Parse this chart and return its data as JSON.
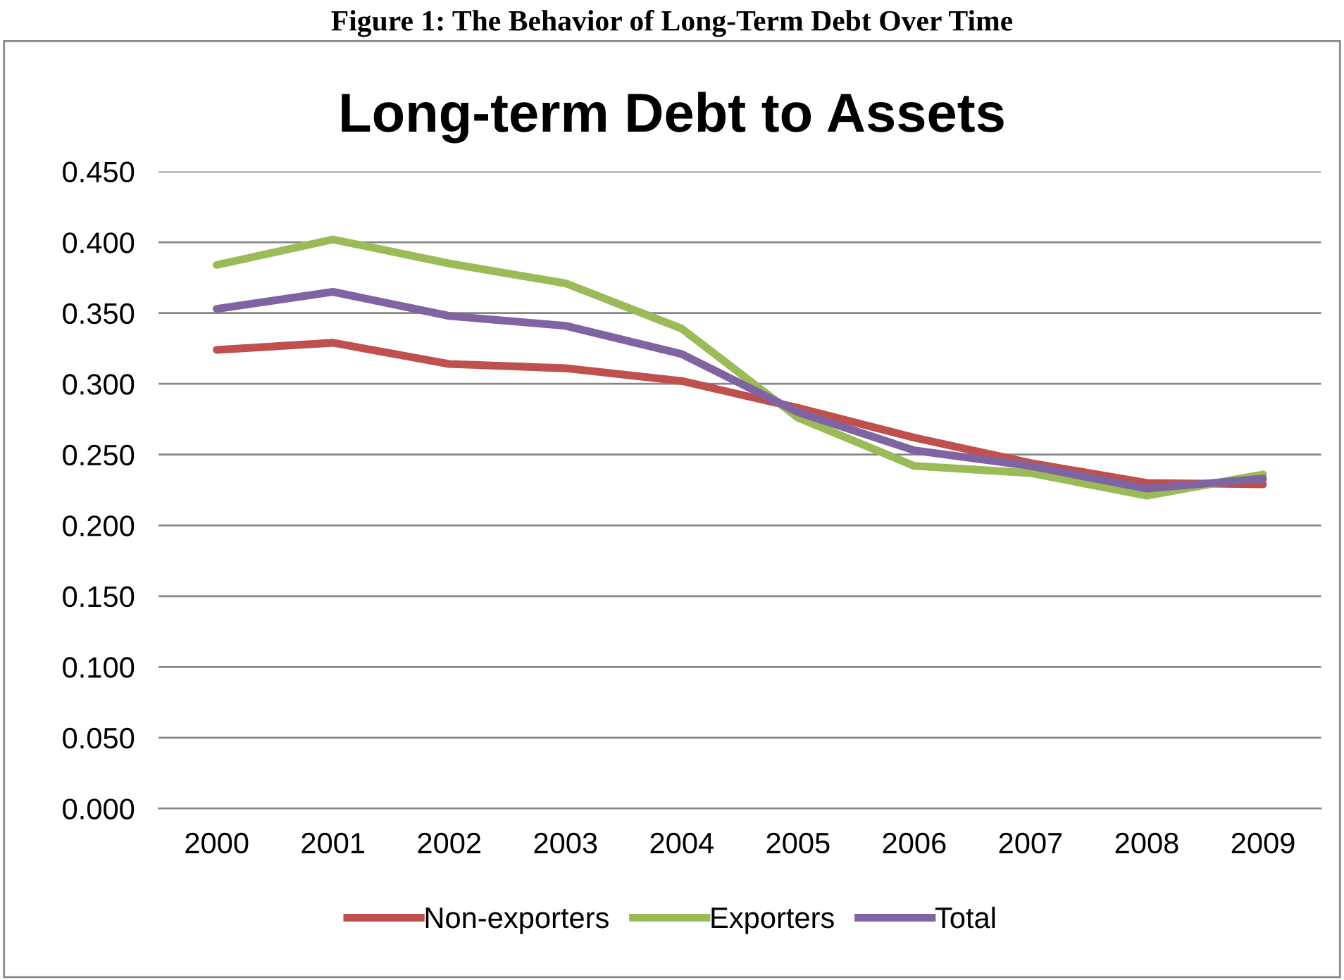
{
  "chart_data": {
    "type": "line",
    "title": "Long-term Debt to Assets",
    "annotations": [
      "Figure 1: The Behavior of Long-Term Debt Over Time"
    ],
    "categories": [
      "2000",
      "2001",
      "2002",
      "2003",
      "2004",
      "2005",
      "2006",
      "2007",
      "2008",
      "2009"
    ],
    "series": [
      {
        "name": "Non-exporters",
        "color": "#c0504d",
        "values": [
          0.324,
          0.329,
          0.314,
          0.311,
          0.302,
          0.283,
          0.262,
          0.244,
          0.23,
          0.229
        ]
      },
      {
        "name": "Exporters",
        "color": "#9bbb59",
        "values": [
          0.384,
          0.402,
          0.385,
          0.371,
          0.339,
          0.276,
          0.242,
          0.237,
          0.221,
          0.236
        ]
      },
      {
        "name": "Total",
        "color": "#8064a2",
        "values": [
          0.353,
          0.365,
          0.348,
          0.341,
          0.321,
          0.28,
          0.253,
          0.242,
          0.226,
          0.233
        ]
      }
    ],
    "ylim": [
      0,
      0.45
    ],
    "yticks": [
      {
        "value": 0,
        "label": "0.000"
      },
      {
        "value": 0.05,
        "label": "0.050"
      },
      {
        "value": 0.1,
        "label": "0.100"
      },
      {
        "value": 0.15,
        "label": "0.150"
      },
      {
        "value": 0.2,
        "label": "0.200"
      },
      {
        "value": 0.25,
        "label": "0.250"
      },
      {
        "value": 0.3,
        "label": "0.300"
      },
      {
        "value": 0.35,
        "label": "0.350"
      },
      {
        "value": 0.4,
        "label": "0.400"
      },
      {
        "value": 0.45,
        "label": "0.450"
      }
    ],
    "grid": "y",
    "legend": "bottom",
    "marker": "none",
    "line_style": "solid"
  }
}
